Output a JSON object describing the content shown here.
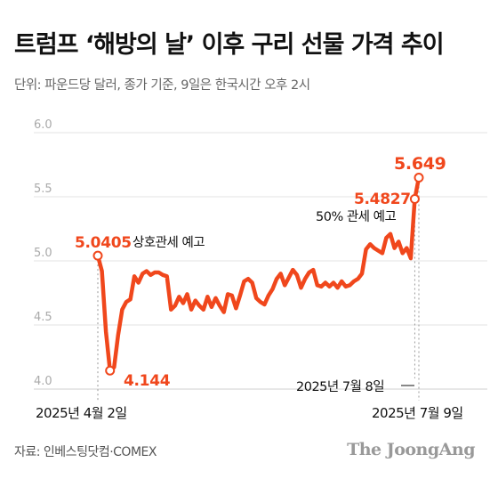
{
  "title": "트럼프 ‘해방의 날’ 이후 구리 선물 가격 추이",
  "subtitle": "단위: 파운드당 달러, 종가 기준, 9일은 한국시간 오후 2시",
  "source": "자료: 인베스팅닷컴·COMEX",
  "brand": "The JoongAng",
  "colors": {
    "line": "#f0471c",
    "grid": "#e3e3e3",
    "axis_text": "#aaaaaa"
  },
  "chart_data": {
    "type": "line",
    "ylim": [
      4.0,
      6.0
    ],
    "yticks": [
      "4.0",
      "4.5",
      "5.0",
      "5.5",
      "6.0"
    ],
    "x_labels": {
      "start": "2025년 4월 2일",
      "end": "2025년 7월 9일"
    },
    "grid": true,
    "series": [
      {
        "values": [
          5.0405,
          4.92,
          4.45,
          4.144,
          4.17,
          4.42,
          4.62,
          4.68,
          4.7,
          4.88,
          4.83,
          4.9,
          4.92,
          4.89,
          4.91,
          4.91,
          4.89,
          4.88,
          4.62,
          4.65,
          4.72,
          4.67,
          4.74,
          4.62,
          4.69,
          4.65,
          4.62,
          4.72,
          4.64,
          4.71,
          4.65,
          4.6,
          4.74,
          4.73,
          4.63,
          4.73,
          4.84,
          4.86,
          4.83,
          4.71,
          4.68,
          4.66,
          4.73,
          4.78,
          4.86,
          4.9,
          4.81,
          4.87,
          4.93,
          4.89,
          4.79,
          4.86,
          4.91,
          4.93,
          4.81,
          4.8,
          4.83,
          4.8,
          4.83,
          4.79,
          4.84,
          4.8,
          4.81,
          4.84,
          4.86,
          4.9,
          5.09,
          5.13,
          5.1,
          5.08,
          5.06,
          5.18,
          5.21,
          5.1,
          5.15,
          5.06,
          5.1,
          5.02,
          5.4827,
          5.649
        ]
      }
    ],
    "annotations": [
      {
        "value_label": "5.0405",
        "note": "상호관세 예고"
      },
      {
        "value_label": "4.144",
        "note": ""
      },
      {
        "value_label": "5.4827",
        "note": "50% 관세 예고"
      },
      {
        "value_label": "5.649",
        "note": ""
      }
    ],
    "date_marker": "2025년 7월 8일"
  }
}
